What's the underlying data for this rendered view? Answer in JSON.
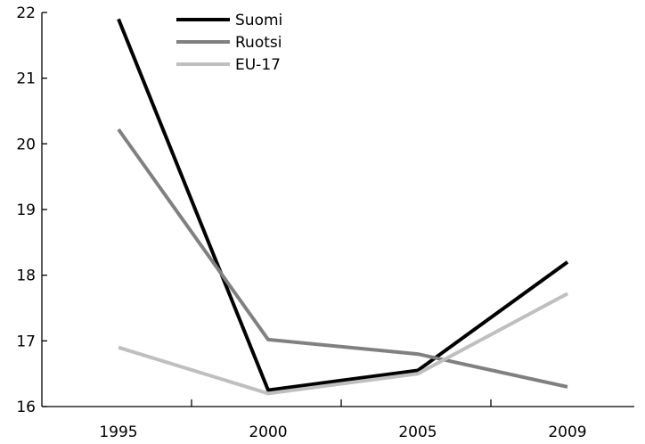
{
  "chart_data": {
    "type": "line",
    "categories": [
      "1995",
      "2000",
      "2005",
      "2009"
    ],
    "series": [
      {
        "name": "Suomi",
        "color": "#000000",
        "values": [
          21.9,
          16.25,
          16.55,
          18.2
        ]
      },
      {
        "name": "Ruotsi",
        "color": "#808080",
        "values": [
          20.22,
          17.02,
          16.8,
          16.3
        ]
      },
      {
        "name": "EU-17",
        "color": "#bfbfbf",
        "values": [
          16.9,
          16.2,
          16.5,
          17.72
        ]
      }
    ],
    "yticks": [
      "16",
      "17",
      "18",
      "19",
      "20",
      "21",
      "22"
    ],
    "ylim": [
      16,
      22
    ],
    "legend": "top-center",
    "grid": false
  }
}
